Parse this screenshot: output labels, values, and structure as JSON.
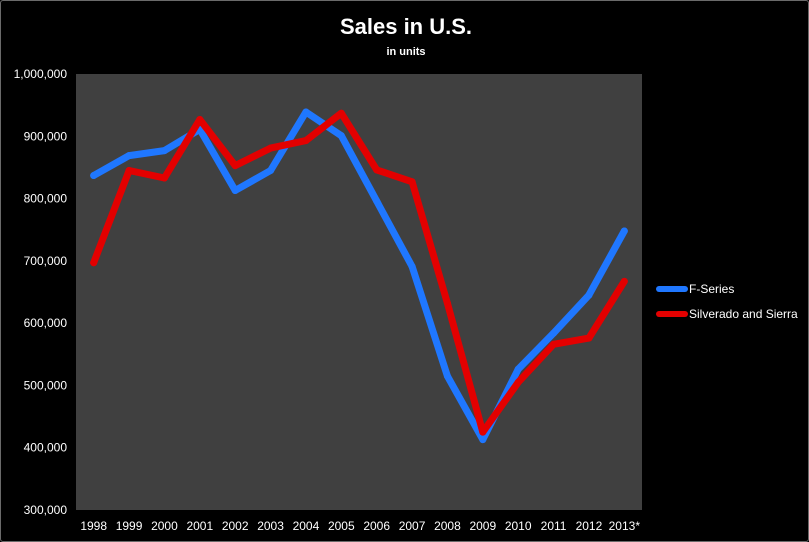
{
  "chart_data": {
    "type": "line",
    "title": "Sales in U.S.",
    "subtitle": "in units",
    "categories": [
      "1998",
      "1999",
      "2000",
      "2001",
      "2002",
      "2003",
      "2004",
      "2005",
      "2006",
      "2007",
      "2008",
      "2009",
      "2010",
      "2011",
      "2012",
      "2013*"
    ],
    "ylim": [
      300000,
      1000000
    ],
    "yticks": [
      300000,
      400000,
      500000,
      600000,
      700000,
      800000,
      900000,
      1000000
    ],
    "ytick_labels": [
      "300,000",
      "400,000",
      "500,000",
      "600,000",
      "700,000",
      "800,000",
      "900,000",
      "1,000,000"
    ],
    "grid": false,
    "legend_position": "right",
    "plot_background": "#404040",
    "background": "#000000",
    "series": [
      {
        "name": "F-Series",
        "color": "#1f77ff",
        "values": [
          837000,
          869000,
          877000,
          911000,
          813000,
          845000,
          939000,
          901000,
          796000,
          691000,
          515000,
          413000,
          526000,
          584000,
          645000,
          748000
        ]
      },
      {
        "name": "Silverado and Sierra",
        "color": "#e30000",
        "values": [
          697000,
          845000,
          833000,
          927000,
          853000,
          881000,
          893000,
          937000,
          846000,
          827000,
          632000,
          425000,
          505000,
          566000,
          576000,
          667000
        ]
      }
    ]
  }
}
